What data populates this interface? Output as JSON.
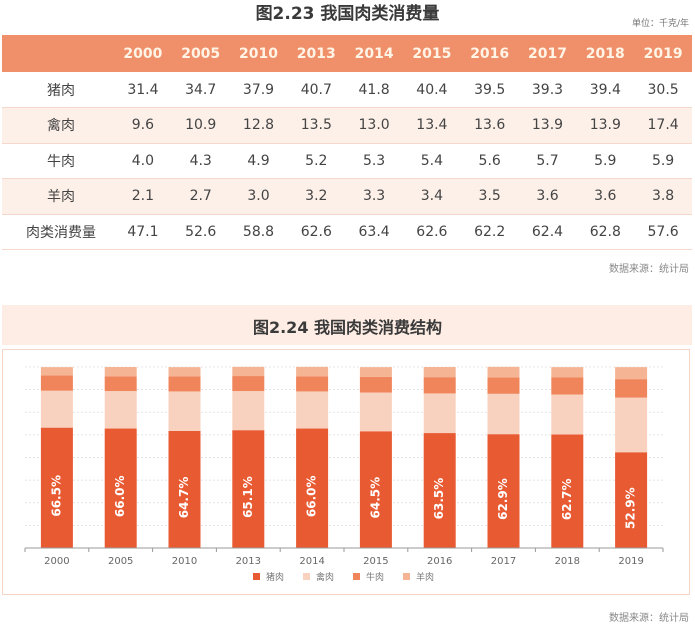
{
  "table": {
    "title": "图2.23 我国肉类消费量",
    "unit": "单位：千克/年",
    "years": [
      "2000",
      "2005",
      "2010",
      "2013",
      "2014",
      "2015",
      "2016",
      "2017",
      "2018",
      "2019"
    ],
    "rows": [
      {
        "label": "猪肉",
        "values": [
          "31.4",
          "34.7",
          "37.9",
          "40.7",
          "41.8",
          "40.4",
          "39.5",
          "39.3",
          "39.4",
          "30.5"
        ]
      },
      {
        "label": "禽肉",
        "values": [
          "9.6",
          "10.9",
          "12.8",
          "13.5",
          "13.0",
          "13.4",
          "13.6",
          "13.9",
          "13.9",
          "17.4"
        ]
      },
      {
        "label": "牛肉",
        "values": [
          "4.0",
          "4.3",
          "4.9",
          "5.2",
          "5.3",
          "5.4",
          "5.6",
          "5.7",
          "5.9",
          "5.9"
        ]
      },
      {
        "label": "羊肉",
        "values": [
          "2.1",
          "2.7",
          "3.0",
          "3.2",
          "3.3",
          "3.4",
          "3.5",
          "3.6",
          "3.6",
          "3.8"
        ]
      },
      {
        "label": "肉类消费量",
        "values": [
          "47.1",
          "52.6",
          "58.8",
          "62.6",
          "63.4",
          "62.6",
          "62.2",
          "62.4",
          "62.8",
          "57.6"
        ]
      }
    ],
    "source": "数据来源：统计局"
  },
  "chart_data": {
    "type": "bar",
    "stacked": true,
    "normalized": true,
    "title": "图2.24 我国肉类消费结构",
    "categories": [
      "2000",
      "2005",
      "2010",
      "2013",
      "2014",
      "2015",
      "2016",
      "2017",
      "2018",
      "2019"
    ],
    "series": [
      {
        "name": "猪肉",
        "color": "#e85a32",
        "values": [
          66.5,
          66.0,
          64.7,
          65.1,
          66.0,
          64.5,
          63.5,
          62.9,
          62.7,
          52.9
        ]
      },
      {
        "name": "禽肉",
        "color": "#f9d2bf",
        "values": [
          20.4,
          20.7,
          21.8,
          21.6,
          20.5,
          21.4,
          21.9,
          22.3,
          22.1,
          30.2
        ]
      },
      {
        "name": "牛肉",
        "color": "#f0845a",
        "values": [
          8.5,
          8.2,
          8.3,
          8.3,
          8.4,
          8.6,
          9.0,
          9.1,
          9.4,
          10.2
        ]
      },
      {
        "name": "羊肉",
        "color": "#f5b595",
        "values": [
          4.5,
          5.1,
          5.1,
          5.1,
          5.2,
          5.4,
          5.6,
          5.8,
          5.7,
          6.6
        ]
      }
    ],
    "data_labels": [
      "66.5%",
      "66.0%",
      "64.7%",
      "65.1%",
      "66.0%",
      "64.5%",
      "63.5%",
      "62.9%",
      "62.7%",
      "52.9%"
    ],
    "ylim": [
      0,
      100
    ],
    "grid": true,
    "legend": "bottom",
    "xlabel": "",
    "ylabel": ""
  },
  "chart_source": "数据来源：统计局"
}
